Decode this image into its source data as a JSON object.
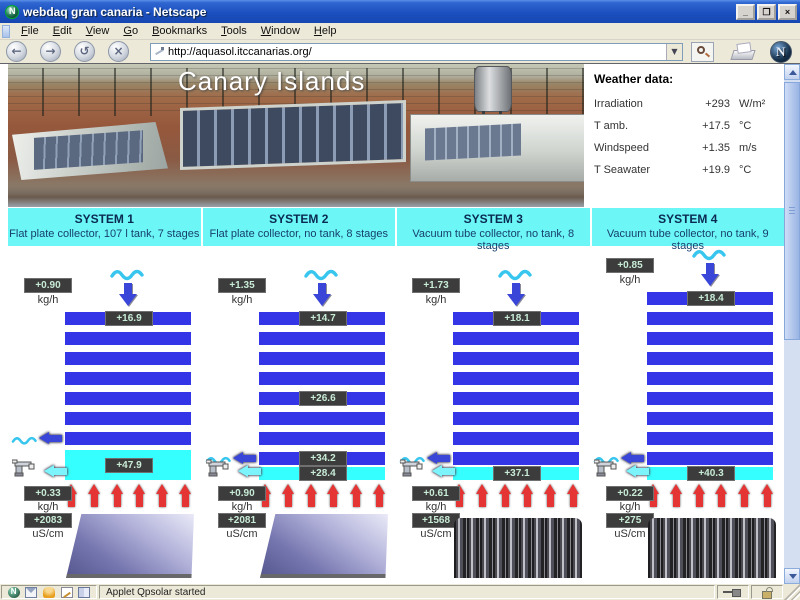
{
  "window": {
    "title": "webdaq gran canaria - Netscape",
    "buttons": {
      "minimize": "_",
      "restore": "❐",
      "close": "×"
    }
  },
  "menu": {
    "items": [
      "File",
      "Edit",
      "View",
      "Go",
      "Bookmarks",
      "Tools",
      "Window",
      "Help"
    ]
  },
  "toolbar": {
    "back": "←",
    "forward": "→",
    "reload": "↺",
    "stop": "×",
    "url": "http://aquasol.itccanarias.org/",
    "url_dropdown": "▼",
    "icons": [
      "bookmark-quill-icon",
      "search-icon",
      "printer-icon",
      "netscape-throbber"
    ]
  },
  "statusbar": {
    "status_text": "Applet Qpsolar started",
    "icons": [
      "netscape-icon",
      "mail-icon",
      "instant-messenger-icon",
      "composer-icon",
      "address-book-icon",
      "network-plug-icon",
      "security-padlock-icon"
    ]
  },
  "page": {
    "photo_title": "Canary Islands",
    "weather": {
      "title": "Weather data:",
      "rows": [
        {
          "label": "Irradiation",
          "value": "+293",
          "unit": "W/m²"
        },
        {
          "label": "T amb.",
          "value": "+17.5",
          "unit": "°C"
        },
        {
          "label": "Windspeed",
          "value": "+1.35",
          "unit": "m/s"
        },
        {
          "label": "T Seawater",
          "value": "+19.9",
          "unit": "°C"
        }
      ]
    },
    "systems": [
      {
        "name": "SYSTEM 1",
        "subtitle": "Flat plate collector, 107 l tank, 7 stages",
        "inflow": "+0.90",
        "inflow_unit": "kg/h",
        "stages": 7,
        "stage_values": {
          "0": "+16.9"
        },
        "tank": "large",
        "tank_value": "+47.9",
        "outflow": "+0.33",
        "outflow_unit": "kg/h",
        "conductivity": "+2083",
        "conductivity_unit": "uS/cm",
        "collector": "flat",
        "heat_arrows": 6
      },
      {
        "name": "SYSTEM 2",
        "subtitle": "Flat plate collector, no tank, 8 stages",
        "inflow": "+1.35",
        "inflow_unit": "kg/h",
        "stages": 8,
        "stage_values": {
          "0": "+14.7",
          "4": "+26.6",
          "7": "+34.2"
        },
        "tank": "small",
        "tank_value": "+28.4",
        "outflow": "+0.90",
        "outflow_unit": "kg/h",
        "conductivity": "+2081",
        "conductivity_unit": "uS/cm",
        "collector": "flat",
        "heat_arrows": 6
      },
      {
        "name": "SYSTEM 3",
        "subtitle": "Vacuum tube collector, no tank, 8 stages",
        "inflow": "+1.73",
        "inflow_unit": "kg/h",
        "stages": 8,
        "stage_values": {
          "0": "+18.1"
        },
        "tank": "small",
        "tank_value": "+37.1",
        "outflow": "+0.61",
        "outflow_unit": "kg/h",
        "conductivity": "+1568",
        "conductivity_unit": "uS/cm",
        "collector": "tubes",
        "heat_arrows": 6
      },
      {
        "name": "SYSTEM 4",
        "subtitle": "Vacuum tube collector, no tank, 9 stages",
        "inflow": "+0.85",
        "inflow_unit": "kg/h",
        "stages": 9,
        "stage_values": {
          "0": "+18.4"
        },
        "tank": "small",
        "tank_value": "+40.3",
        "outflow": "+0.22",
        "outflow_unit": "kg/h",
        "conductivity": "+275",
        "conductivity_unit": "uS/cm",
        "collector": "tubes",
        "heat_arrows": 6
      }
    ]
  },
  "colors": {
    "cyan_band": "#6cf6f6",
    "stage_bar_blue": "#3535e8",
    "tank_cyan": "#35ffff",
    "badge_bg": "#3c3c3c",
    "badge_text": "#c9ecd7",
    "heat_arrow_red": "#e43434",
    "flow_arrow_blue": "#3a46d8",
    "tap_arrow_cyan": "#7df4fb",
    "wave_cyan": "#38c6ee"
  }
}
